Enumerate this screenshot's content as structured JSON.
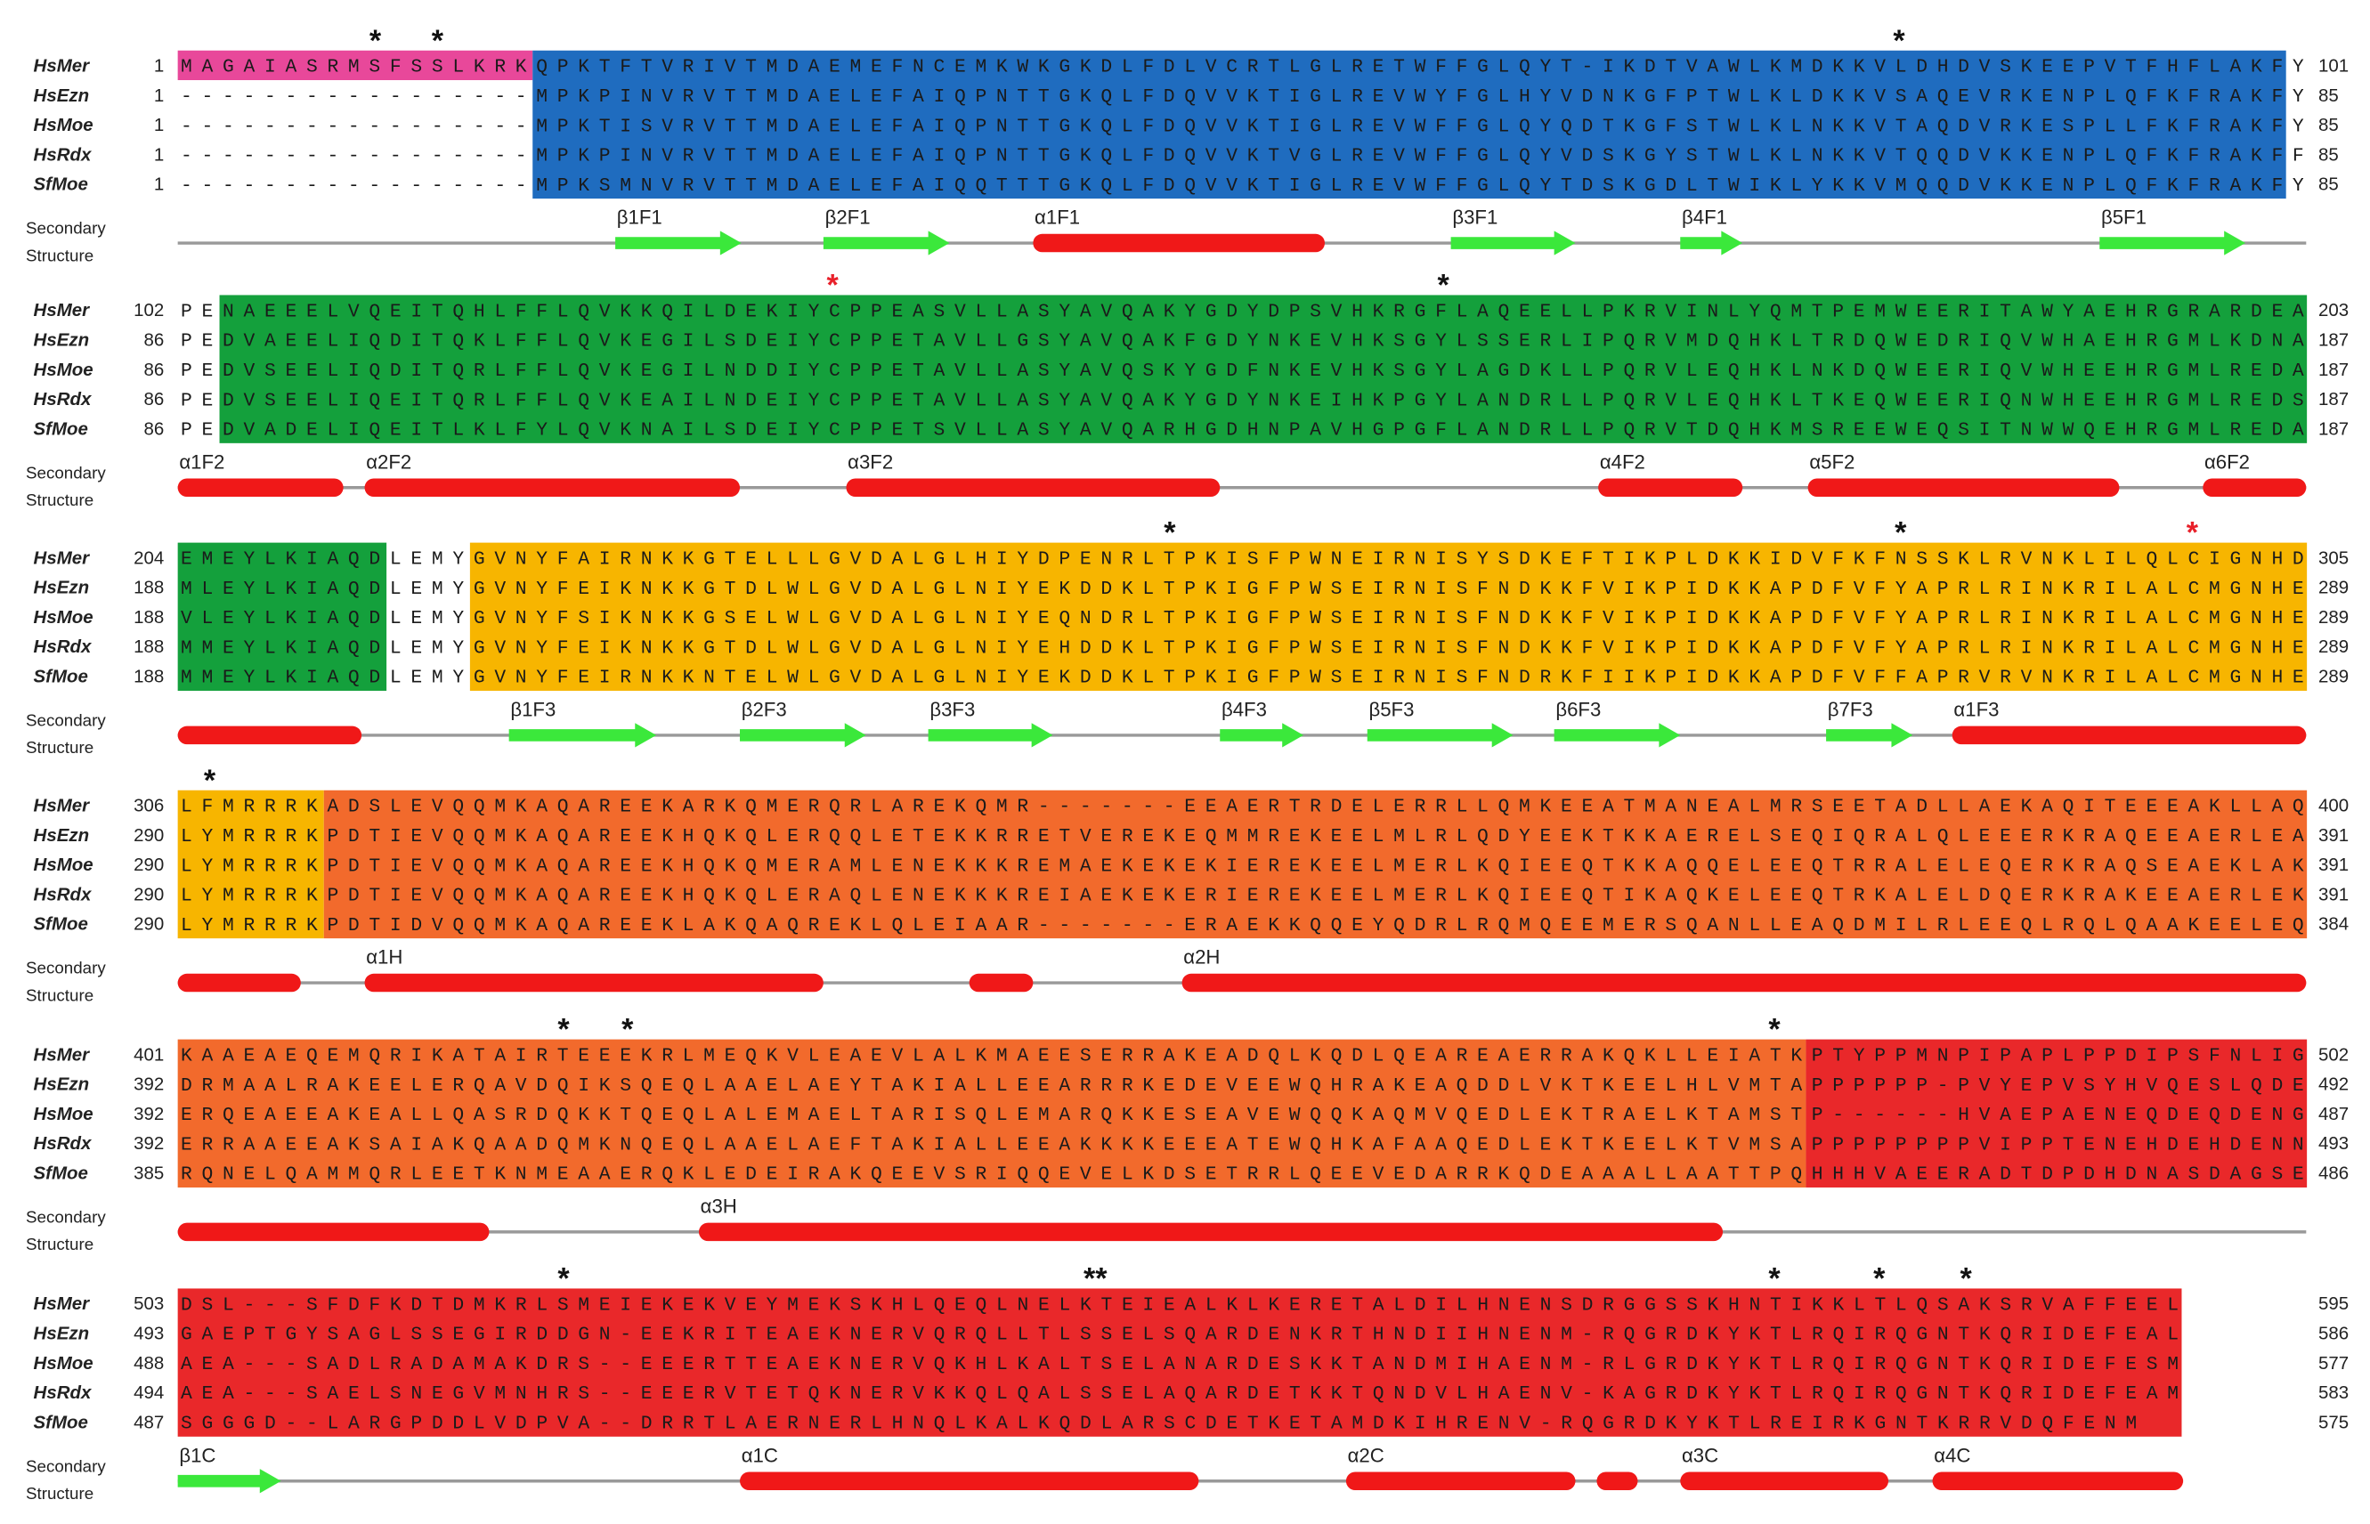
{
  "blocks": [
    {
      "asterisks": [
        "*",
        "*",
        "*"
      ],
      "rows": [
        {
          "name": "HsMer",
          "start": 1,
          "sequence": "MAGAIASRMSFSSLKRKQPKTFTVRIVTMDAEMEFNCEMKWKGKDLFDLVCRTLGLRETWFFGLQYT-IKDTVAWLKMDKKVLDHDVSKEEPVTFHFLAKFY",
          "end": 101
        },
        {
          "name": "HsEzn",
          "start": 1,
          "sequence": "-----------------MPKPINVRVTTMDAELEFAIQPNTTGKQLFDQVVKTIGLREVWYFGLHYVDNKGFPTWLKLDKKVSAQEVRKENPLQFKFRAKFY",
          "end": 85
        },
        {
          "name": "HsMoe",
          "start": 1,
          "sequence": "-----------------MPKTISVRVTTMDAELEFAIQPNTTGKQLFDQVVKTIGLREVWFFGLQYQDTKGFSTWLKLNKKVTAQDVRKESPLLFKFRAKFY",
          "end": 85
        },
        {
          "name": "HsRdx",
          "start": 1,
          "sequence": "-----------------MPKPINVRVTTMDAELEFAIQPNTTGKQLFDQVVKTVGLREVWFFGLQYVDSKGYSTWLKLNKKVTQQDVKKENPLQFKFRAKFF",
          "end": 85
        },
        {
          "name": "SfMoe",
          "start": 1,
          "sequence": "-----------------MPKSMNVRVTTMDAELEFAIQQTTTGKQLFDQVVKTIGLREVWFFGLQYTDSKGDLTWIKLYKKVMQQDVKKENPLQFKFRAKFY",
          "end": 85
        }
      ],
      "secondary_structure": {
        "label": [
          "Secondary",
          "Structure"
        ],
        "elements": [
          "β1F1",
          "β2F1",
          "α1F1",
          "β3F1",
          "β4F1",
          "β5F1"
        ]
      }
    },
    {
      "asterisks": [
        "*",
        "*"
      ],
      "rows": [
        {
          "name": "HsMer",
          "start": 102,
          "sequence": "PENAEEELVQEITQHLFFLQVKKQILDEKIYCPPEASVLLASYAVQAKYGDYDPSVHKRGFLAQEELLPKRVINLYQMTPEMWEERITAWYAEHRGRARDEA",
          "end": 203
        },
        {
          "name": "HsEzn",
          "start": 86,
          "sequence": "PEDVAEELIQDITQKLFFLQVKEGILSDEIYCPPETAVLLGSYAVQAKFGDYNKEVHKSGYLSSERLIPQRVMDQHKLTRDQWEDRIQVWHAEHRGMLKDNA",
          "end": 187
        },
        {
          "name": "HsMoe",
          "start": 86,
          "sequence": "PEDVSEELIQDITQRLFFLQVKEGILNDDIYCPPETAVLLASYAVQSKYGDFNKEVHKSGYLAGDKLLPQRVLEQHKLNKDQWEERIQVWHEEHRGMLREDA",
          "end": 187
        },
        {
          "name": "HsRdx",
          "start": 86,
          "sequence": "PEDVSEELIQEITQRLFFLQVKEAILNDEIYCPPETAVLLASYAVQAKYGDYNKEIHKPGYLANDRLLPQRVLEQHKLTKEQWEERIQNWHEEHRGMLREDS",
          "end": 187
        },
        {
          "name": "SfMoe",
          "start": 86,
          "sequence": "PEDVADELIQEITLKLFYLQVKNAILSDEIYCPPETSVLLASYAVQARHGDHNPAVHGPGFLANDRLLPQRVTDQHKMSREEWEQSITNWWQEHRGMLREDA",
          "end": 187
        }
      ],
      "secondary_structure": {
        "label": [
          "Secondary",
          "Structure"
        ],
        "elements": [
          "α1F2",
          "α2F2",
          "α3F2",
          "α4F2",
          "α5F2",
          "α6F2"
        ]
      }
    },
    {
      "asterisks": [
        "*",
        "*",
        "*"
      ],
      "rows": [
        {
          "name": "HsMer",
          "start": 204,
          "sequence": "EMEYLKIAQDLEMYGVNYFAIRNKKGTELLLGVDALGLHIYDPENRLTPKISFPWNEIRNISYSDKEFTIKPLDKKIDVFKFNSSKLRVNKLILQLCIGNHD",
          "end": 305
        },
        {
          "name": "HsEzn",
          "start": 188,
          "sequence": "MLEYLKIAQDLEMYGVNYFEIKNKKGTDLWLGVDALGLNIYEKDDKLTPKIGFPWSEIRNISFNDKKFVIKPIDKKAPDFVFYAPRLRINKRILALCMGNHE",
          "end": 289
        },
        {
          "name": "HsMoe",
          "start": 188,
          "sequence": "VLEYLKIAQDLEMYGVNYFSIKNKKGSELWLGVDALGLNIYEQNDRLTPKIGFPWSEIRNISFNDKKFVIKPIDKKAPDFVFYAPRLRINKRILALCMGNHE",
          "end": 289
        },
        {
          "name": "HsRdx",
          "start": 188,
          "sequence": "MMEYLKIAQDLEMYGVNYFEIKNKKGTDLWLGVDALGLNIYEHDDKLTPKIGFPWSEIRNISFNDKKFVIKPIDKKAPDFVFYAPRLRINKRILALCMGNHE",
          "end": 289
        },
        {
          "name": "SfMoe",
          "start": 188,
          "sequence": "MMEYLKIAQDLEMYGVNYFEIRNKKNTELWLGVDALGLNIYEKDDKLTPKIGFPWSEIRNISFNDRKFIIKPIDKKAPDFVFFAPRVRVNKRILALCMGNHE",
          "end": 289
        }
      ],
      "secondary_structure": {
        "label": [
          "Secondary",
          "Structure"
        ],
        "elements": [
          "β1F3",
          "β2F3",
          "β3F3",
          "β4F3",
          "β5F3",
          "β6F3",
          "β7F3",
          "α1F3"
        ]
      }
    },
    {
      "asterisks": [
        "*"
      ],
      "rows": [
        {
          "name": "HsMer",
          "start": 306,
          "sequence": "LFMRRRKADSLEVQQMKAQAREEKARKQMERQRLAREKQMR-------EEAERTRDELERRLLQMKEEATMANEALMRSEETADLLAEKAQITEEEAKLLAQ",
          "end": 400
        },
        {
          "name": "HsEzn",
          "start": 290,
          "sequence": "LYMRRRKPDTIEVQQMKAQAREEKHQKQLERQQLETEKKRRETVEREKEQMMREKEELMLRLQDYEEKTKKAERELSEQIQRALQLEEERKRAQEEAERLEA",
          "end": 391
        },
        {
          "name": "HsMoe",
          "start": 290,
          "sequence": "LYMRRRKPDTIEVQQMKAQAREEKHQKQMERAMLENEKKKREMAEKEKEKIEREKEELMERLKQIEEQTKKAQQELEEQTRRALELEQERKRAQSEAEKLAK",
          "end": 391
        },
        {
          "name": "HsRdx",
          "start": 290,
          "sequence": "LYMRRRKPDTIEVQQMKAQAREEKHQKQLERAQLENEKKKREIAEKEKERIEREKEELMERLKQIEEQTIKAQKELEEQTRKALELDQERKRAKEEAERLEK",
          "end": 391
        },
        {
          "name": "SfMoe",
          "start": 290,
          "sequence": "LYMRRRKPDTIDVQQMKAQAREEKLAKQAQREKLQLEIAAR-------ERAEKKQQEYQDRLRQMQEEMERSQANLLEAQDMILRLEEQLRQLQAAKEELEQ",
          "end": 384
        }
      ],
      "secondary_structure": {
        "label": [
          "Secondary",
          "Structure"
        ],
        "elements": [
          "α1H",
          "α2H"
        ]
      }
    },
    {
      "asterisks": [
        "*",
        "*",
        "*"
      ],
      "rows": [
        {
          "name": "HsMer",
          "start": 401,
          "sequence": "KAAEAEQEMQRIKATAIRTEEEKRLMEQKVLEAEVLALKMAEESERRAKEADQLKQDLQEAREAERRAKQKLLEIATKPTYPPMNPIPAPLPPDIPSFNLIG",
          "end": 502
        },
        {
          "name": "HsEzn",
          "start": 392,
          "sequence": "DRMAALRAKEELERQAVDQIKSQEQLAAELAEYTAKIALLEEARRRKEDEVEEWQHRAKEAQDDLVKTKEELHLVMTAPPPPPP-PVYEPVSYHVQESLQDE",
          "end": 492
        },
        {
          "name": "HsMoe",
          "start": 392,
          "sequence": "ERQEAEEAKEALLQASRDQKKTQEQLALEMAELTARISQLEMARQKKESEAVEWQQKAQMVQEDLEKTRAELKTAMSTP------HVAEPAENEQDEQDENG",
          "end": 487
        },
        {
          "name": "HsRdx",
          "start": 392,
          "sequence": "ERRAAEEAKSAIAKQAADQMKNQEQLAAELAEFTAKIALLEEAKKKKEEEATEWQHKAFAAQEDLEKTKEELKTVMSAPPPPPPPPVIPPTENEHDEHDENN",
          "end": 493
        },
        {
          "name": "SfMoe",
          "start": 385,
          "sequence": "RQNELQAMMQRLEETKNMEAAERQKLEDEIRAKQEEVSRIQQEVELKDSETRRLQEEVEDARRKQDEAAALLAATTPQHHHVAEERADTDPDHDNASDAGSE",
          "end": 486
        }
      ],
      "secondary_structure": {
        "label": [
          "Secondary",
          "Structure"
        ],
        "elements": [
          "α3H"
        ]
      }
    },
    {
      "asterisks": [
        "*",
        "**",
        "*",
        "*",
        "*"
      ],
      "rows": [
        {
          "name": "HsMer",
          "start": 503,
          "sequence": "DSL---SFDFKDTDMKRLSMEIEKEKVEYMEKSKHLQEQLNELKTEIEALKLKERETALDILHNENSDRGGSSKHNTIKKLTLQSAKSRVAFFEEL",
          "end": 595
        },
        {
          "name": "HsEzn",
          "start": 493,
          "sequence": "GAEPTGYSAGLSSEGIRDDGN-EEKRITEAEKNERVQRQLLTLSSELSQARDENKRTHNDIIHNENM-RQGRDKYKTLRQIRQGNTKQRIDEFEAL",
          "end": 586
        },
        {
          "name": "HsMoe",
          "start": 488,
          "sequence": "AEA---SADLRADAMAKDRS--EEERTTEAEKNERVQKHLKALTSELANARDESKKTANDMIHAENM-RLGRDKYKTLRQIRQGNTKQRIDEFESM",
          "end": 577
        },
        {
          "name": "HsRdx",
          "start": 494,
          "sequence": "AEA---SAELSNEGVMNHRS--EEERVTETQKNERVKKQLQALSSELAQARDETKKTQNDVLHAENV-KAGRDKYKTLRQIRQGNTKQRIDEFEAM",
          "end": 583
        },
        {
          "name": "SfMoe",
          "start": 487,
          "sequence": "SGGGD--LARGPDDLVDPVA--DRRTLAERNERLHNQLKALKQDLARSCDETKETAMDKIHRENV-RQGRDKYKTLREIRKGNTKRRVDQFENM",
          "end": 575
        }
      ],
      "secondary_structure": {
        "label": [
          "Secondary",
          "Structure"
        ],
        "elements": [
          "β1C",
          "α1C",
          "α2C",
          "α3C",
          "α4C"
        ]
      }
    }
  ]
}
